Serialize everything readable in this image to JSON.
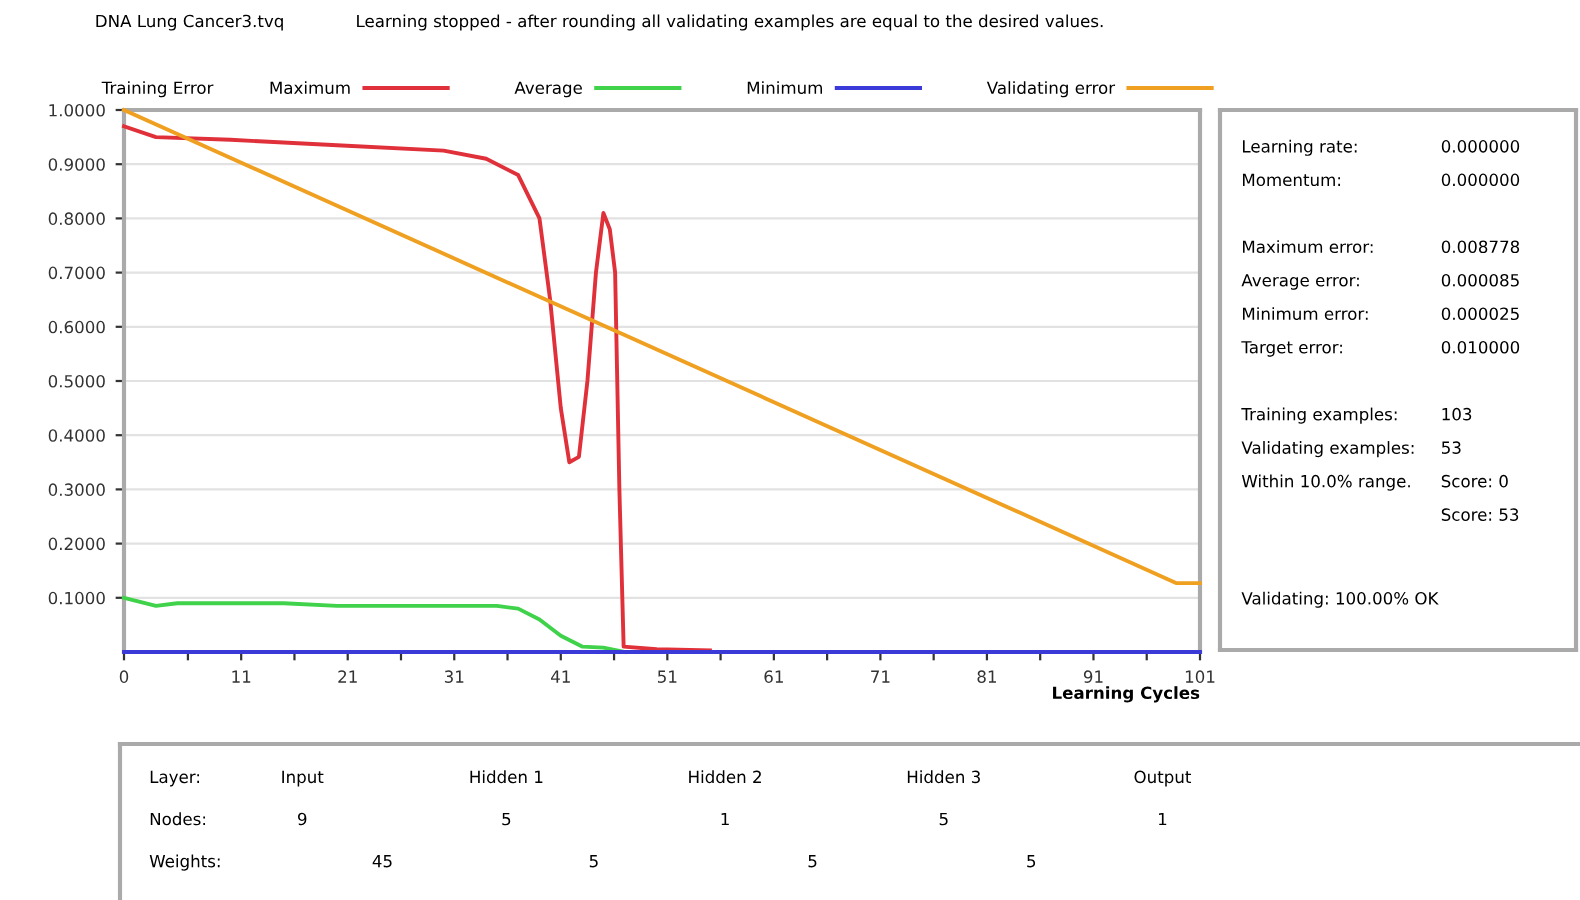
{
  "chart_data": [
    {
      "type": "line",
      "title": "DNA Lung Cancer3.tvq",
      "subtitle": "Learning stopped - after rounding all validating examples are equal to the desired values.",
      "xlabel": "Learning Cycles",
      "legend_title": "Training Error",
      "legend": "top",
      "xlim": [
        0,
        101
      ],
      "xticks": [
        0,
        {
          "value": 6,
          "label": null
        },
        11,
        {
          "value": 16,
          "label": null
        },
        21,
        {
          "value": 26,
          "label": null
        },
        31,
        {
          "value": 36,
          "label": null
        },
        41,
        {
          "value": 46,
          "label": null
        },
        51,
        {
          "value": 56,
          "label": null
        },
        61,
        {
          "value": 66,
          "label": null
        },
        71,
        {
          "value": 76,
          "label": null
        },
        81,
        {
          "value": 86,
          "label": null
        },
        91,
        {
          "value": 96,
          "label": null
        },
        101
      ],
      "ylim": [
        0,
        1.0
      ],
      "yticks": [
        {
          "value": 0.1,
          "label": "0.1000"
        },
        {
          "value": 0.2,
          "label": "0.2000"
        },
        {
          "value": 0.3,
          "label": "0.3000"
        },
        {
          "value": 0.4,
          "label": "0.4000"
        },
        {
          "value": 0.5,
          "label": "0.5000"
        },
        {
          "value": 0.6,
          "label": "0.6000"
        },
        {
          "value": 0.7,
          "label": "0.7000"
        },
        {
          "value": 0.8,
          "label": "0.8000"
        },
        {
          "value": 0.9,
          "label": "0.9000"
        },
        {
          "value": 1.0,
          "label": "1.0000"
        }
      ],
      "grid": "y",
      "marker": "none",
      "line_style": "solid",
      "series": [
        {
          "name": "Maximum",
          "color": "#e0303a",
          "x": [
            0,
            3,
            10,
            20,
            30,
            34,
            37,
            39,
            40,
            41,
            41.8,
            42.7,
            43.5,
            44.3,
            45,
            45.6,
            46.1,
            46.5,
            46.9,
            50,
            55
          ],
          "values": [
            0.97,
            0.95,
            0.945,
            0.935,
            0.925,
            0.91,
            0.88,
            0.8,
            0.65,
            0.45,
            0.35,
            0.36,
            0.5,
            0.7,
            0.81,
            0.78,
            0.7,
            0.3,
            0.01,
            0.005,
            0.003
          ]
        },
        {
          "name": "Average",
          "color": "#3fd24a",
          "x": [
            0,
            3,
            5,
            15,
            20,
            35,
            37,
            39,
            41,
            43,
            45,
            47
          ],
          "values": [
            0.1,
            0.085,
            0.09,
            0.09,
            0.085,
            0.085,
            0.08,
            0.06,
            0.03,
            0.01,
            0.008,
            0.0
          ]
        },
        {
          "name": "Minimum",
          "color": "#3a3ad8",
          "x": [
            0,
            101
          ],
          "values": [
            0.0,
            0.0
          ]
        },
        {
          "name": "Validating error",
          "color": "#f0a020",
          "x": [
            0,
            98.8,
            101
          ],
          "values": [
            1.0,
            0.127,
            0.127
          ]
        }
      ]
    },
    {
      "type": "other",
      "annotations": [
        "Learning rate:",
        "0.000000",
        "Momentum:",
        "0.000000",
        "Maximum error:",
        "0.008778",
        "Average error:",
        "0.000085",
        "Minimum error:",
        "0.000025",
        "Target error:",
        "0.010000",
        "Training examples:",
        "103",
        "Validating examples:",
        "53",
        "Within 10.0% range.",
        "Score: 0",
        "Score: 53",
        "Validating: 100.00% OK"
      ]
    },
    {
      "type": "other",
      "annotations": [
        "Layer:",
        "Input",
        "Hidden 1",
        "Hidden 2",
        "Hidden 3",
        "Output",
        "Nodes:",
        "9",
        "5",
        "1",
        "5",
        "1",
        "Weights:",
        "45",
        "5",
        "5",
        "5"
      ]
    }
  ]
}
